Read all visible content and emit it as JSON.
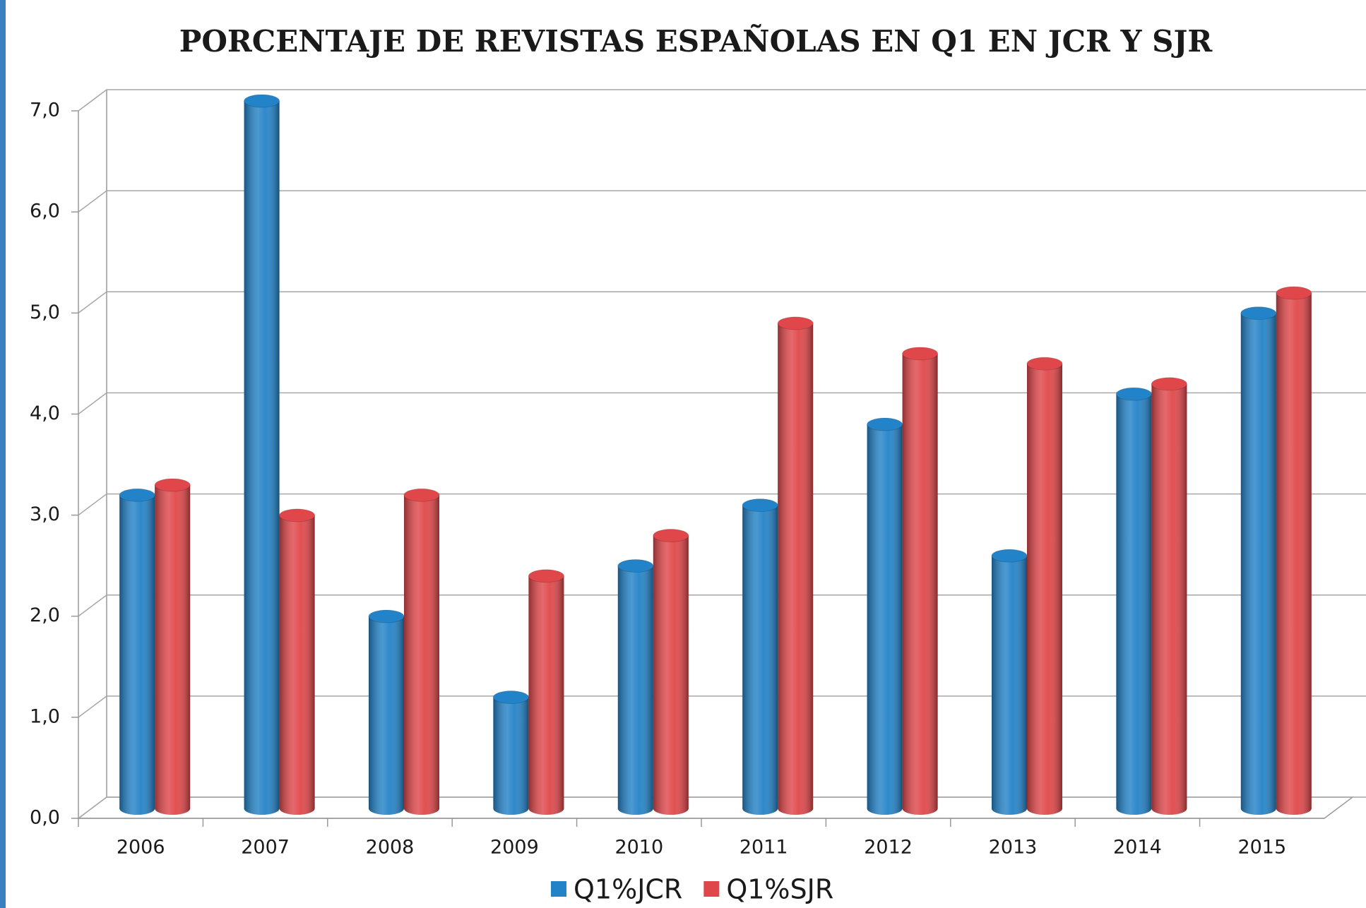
{
  "chart_data": {
    "type": "bar3d",
    "title": "PORCENTAJE DE REVISTAS ESPAÑOLAS EN Q1 EN JCR Y SJR",
    "categories": [
      "2006",
      "2007",
      "2008",
      "2009",
      "2010",
      "2011",
      "2012",
      "2013",
      "2014",
      "2015"
    ],
    "series": [
      {
        "name": "Q1%JCR",
        "color": "#2383c8",
        "values": [
          3.1,
          7.0,
          1.9,
          1.1,
          2.4,
          3.0,
          3.8,
          2.5,
          4.1,
          4.9
        ]
      },
      {
        "name": "Q1%SJR",
        "color": "#e0474a",
        "values": [
          3.2,
          2.9,
          3.1,
          2.3,
          2.7,
          4.8,
          4.5,
          4.4,
          4.2,
          5.1
        ]
      }
    ],
    "ylim": [
      0,
      7
    ],
    "yticks": [
      {
        "value": 0,
        "label": "0,0"
      },
      {
        "value": 1,
        "label": "1,0"
      },
      {
        "value": 2,
        "label": "2,0"
      },
      {
        "value": 3,
        "label": "3,0"
      },
      {
        "value": 4,
        "label": "4,0"
      },
      {
        "value": 5,
        "label": "5,0"
      },
      {
        "value": 6,
        "label": "6,0"
      },
      {
        "value": 7,
        "label": "7,0"
      }
    ],
    "grid": true
  }
}
